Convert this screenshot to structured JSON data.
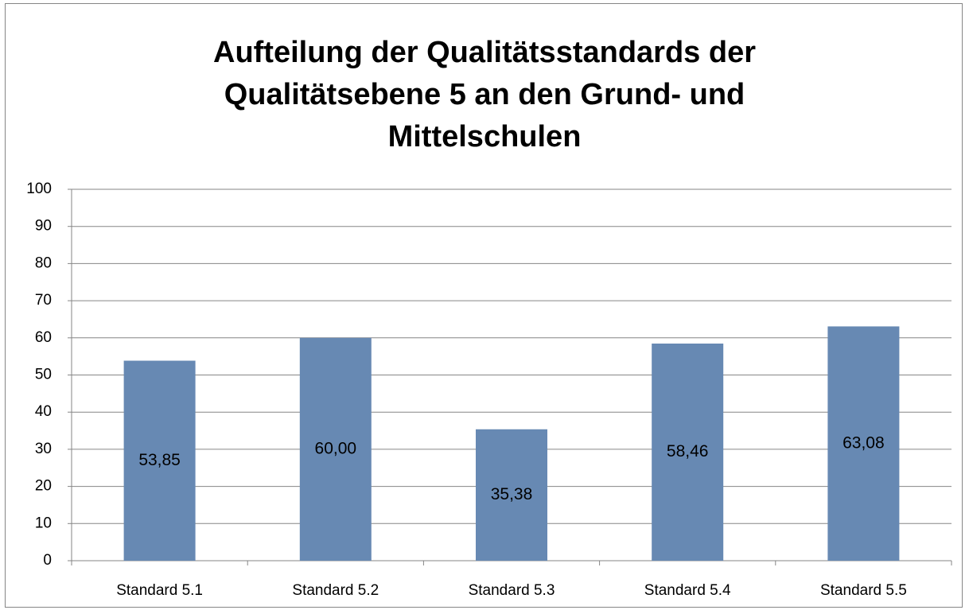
{
  "chart_data": {
    "type": "bar",
    "title": "Aufteilung der Qualitätsstandards der Qualitätsebene 5 an den Grund- und Mittelschulen",
    "categories": [
      "Standard 5.1",
      "Standard 5.2",
      "Standard 5.3",
      "Standard 5.4",
      "Standard 5.5"
    ],
    "values": [
      53.85,
      60.0,
      35.38,
      58.46,
      63.08
    ],
    "value_labels": [
      "53,85",
      "60,00",
      "35,38",
      "58,46",
      "63,08"
    ],
    "color": "#6789b3",
    "ylim": [
      0,
      100
    ],
    "yticks": [
      0,
      10,
      20,
      30,
      40,
      50,
      60,
      70,
      80,
      90,
      100
    ],
    "grid": true
  }
}
